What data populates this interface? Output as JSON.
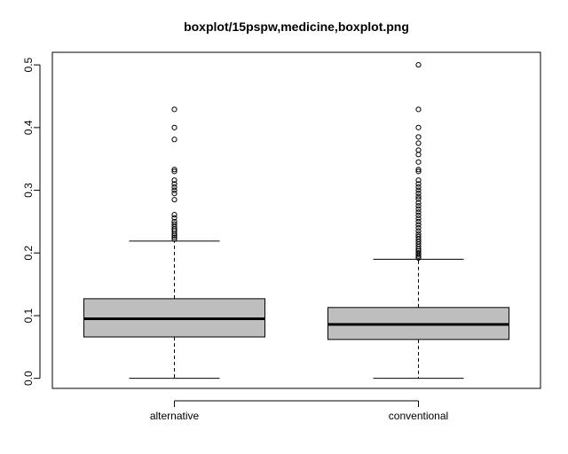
{
  "chart_data": {
    "type": "boxplot",
    "title": "boxplot/15pspw,medicine,boxplot.png",
    "xlabel": "",
    "ylabel": "",
    "ylim": [
      -0.016,
      0.52
    ],
    "y_ticks": [
      "0.0",
      "0.1",
      "0.2",
      "0.3",
      "0.4",
      "0.5"
    ],
    "grid": false,
    "categories": [
      "alternative",
      "conventional"
    ],
    "box_color": "#bebebe",
    "boxes": [
      {
        "category": "alternative",
        "whisker_low": 0.0,
        "q1": 0.066,
        "median": 0.095,
        "q3": 0.127,
        "whisker_high": 0.219,
        "outliers": [
          0.222,
          0.225,
          0.228,
          0.231,
          0.235,
          0.238,
          0.242,
          0.246,
          0.25,
          0.256,
          0.261,
          0.285,
          0.295,
          0.3,
          0.305,
          0.31,
          0.316,
          0.33,
          0.333,
          0.381,
          0.4,
          0.429
        ]
      },
      {
        "category": "conventional",
        "whisker_low": 0.0,
        "q1": 0.062,
        "median": 0.086,
        "q3": 0.113,
        "whisker_high": 0.19,
        "outliers": [
          0.192,
          0.195,
          0.198,
          0.2,
          0.203,
          0.206,
          0.21,
          0.214,
          0.218,
          0.222,
          0.226,
          0.23,
          0.235,
          0.24,
          0.245,
          0.25,
          0.255,
          0.26,
          0.265,
          0.27,
          0.275,
          0.28,
          0.286,
          0.29,
          0.295,
          0.3,
          0.305,
          0.31,
          0.316,
          0.33,
          0.333,
          0.345,
          0.357,
          0.364,
          0.375,
          0.385,
          0.4,
          0.429,
          0.5
        ]
      }
    ]
  }
}
